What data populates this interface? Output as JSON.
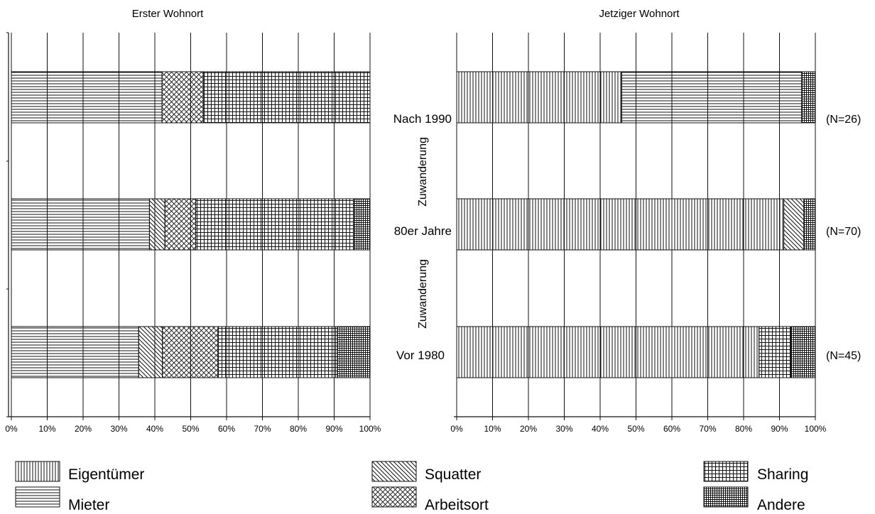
{
  "colors": {
    "stroke": "#111111",
    "background": "#ffffff"
  },
  "legend": [
    {
      "key": "eigentuemer",
      "label": "Eigentümer",
      "pattern": "vlines"
    },
    {
      "key": "mieter",
      "label": "Mieter",
      "pattern": "hlines"
    },
    {
      "key": "squatter",
      "label": "Squatter",
      "pattern": "diag"
    },
    {
      "key": "arbeitsort",
      "label": "Arbeitsort",
      "pattern": "crossdiag"
    },
    {
      "key": "sharing",
      "label": "Sharing",
      "pattern": "grid"
    },
    {
      "key": "andere",
      "label": "Andere",
      "pattern": "densegrid"
    }
  ],
  "middle": {
    "axis_label": "Zuwanderung",
    "n_labels": [
      "(N=26)",
      "(N=70)",
      "(N=45)"
    ]
  },
  "chart_data": [
    {
      "type": "bar",
      "orientation": "horizontal",
      "stacked": true,
      "title": "Erster Wohnort",
      "categories": [
        "Nach 1990",
        "80er Jahre",
        "Vor 1980"
      ],
      "xlim": [
        0,
        100
      ],
      "xticks": [
        "0%",
        "10%",
        "20%",
        "30%",
        "40%",
        "50%",
        "60%",
        "70%",
        "80%",
        "90%",
        "100%"
      ],
      "series": [
        {
          "name": "Eigentümer",
          "values": [
            0,
            0,
            0
          ]
        },
        {
          "name": "Mieter",
          "values": [
            42,
            38.5,
            35.5
          ]
        },
        {
          "name": "Squatter",
          "values": [
            0,
            4.3,
            6.6
          ]
        },
        {
          "name": "Arbeitsort",
          "values": [
            11.5,
            8.6,
            15.5
          ]
        },
        {
          "name": "Sharing",
          "values": [
            46.5,
            44,
            33.3
          ]
        },
        {
          "name": "Andere",
          "values": [
            0,
            4.6,
            9.1
          ]
        }
      ],
      "grid": true
    },
    {
      "type": "bar",
      "orientation": "horizontal",
      "stacked": true,
      "title": "Jetziger Wohnort",
      "categories": [
        "Nach 1990",
        "80er Jahre",
        "Vor 1980"
      ],
      "xlim": [
        0,
        100
      ],
      "xticks": [
        "0%",
        "10%",
        "20%",
        "30%",
        "40%",
        "50%",
        "60%",
        "70%",
        "80%",
        "90%",
        "100%"
      ],
      "series": [
        {
          "name": "Eigentümer",
          "values": [
            46,
            91.2,
            84.3
          ]
        },
        {
          "name": "Mieter",
          "values": [
            50.2,
            0,
            0
          ]
        },
        {
          "name": "Squatter",
          "values": [
            0,
            5.6,
            0
          ]
        },
        {
          "name": "Arbeitsort",
          "values": [
            0,
            0,
            0
          ]
        },
        {
          "name": "Sharing",
          "values": [
            0,
            0,
            8.9
          ]
        },
        {
          "name": "Andere",
          "values": [
            3.8,
            3.2,
            6.8
          ]
        }
      ],
      "grid": true
    }
  ]
}
